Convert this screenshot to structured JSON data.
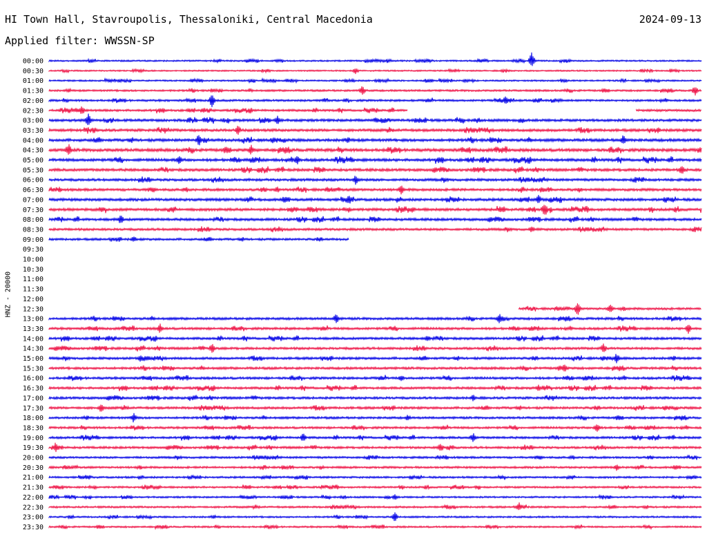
{
  "header": {
    "station": "HI Town Hall, Stavroupolis, Thessaloniki, Central Macedonia",
    "date": "2024-09-13",
    "filter_label": "Applied filter: WWSSN-SP"
  },
  "chart_data": {
    "type": "line",
    "title": "HI Town Hall, Stavroupolis, Thessaloniki, Central Macedonia",
    "subtitle": "Applied filter: WWSSN-SP",
    "ylabel": "HNZ - 20000",
    "xlabel": "",
    "colors": [
      "#0000e6",
      "#ee1144"
    ],
    "row_minutes": 30,
    "rows": [
      {
        "label": "00:00",
        "start": 0.0,
        "end": 1.0,
        "activity": 0.25,
        "events": [
          [
            0.74,
            5
          ]
        ]
      },
      {
        "label": "00:30",
        "start": 0.0,
        "end": 1.0,
        "activity": 0.2,
        "events": [
          [
            0.47,
            2
          ]
        ]
      },
      {
        "label": "01:00",
        "start": 0.0,
        "end": 1.0,
        "activity": 0.25,
        "events": []
      },
      {
        "label": "01:30",
        "start": 0.0,
        "end": 1.0,
        "activity": 0.35,
        "events": [
          [
            0.48,
            3
          ],
          [
            0.99,
            3
          ]
        ]
      },
      {
        "label": "02:00",
        "start": 0.0,
        "end": 1.0,
        "activity": 0.4,
        "events": [
          [
            0.25,
            4
          ],
          [
            0.7,
            3
          ]
        ]
      },
      {
        "label": "02:30",
        "start": 0.0,
        "end": 0.55,
        "activity": 0.45,
        "events": [
          [
            0.05,
            3
          ]
        ]
      },
      {
        "label": "02:30b",
        "start": 0.9,
        "end": 1.0,
        "activity": 0.45,
        "events": [],
        "row_index": 5
      },
      {
        "label": "03:00",
        "start": 0.0,
        "end": 1.0,
        "activity": 0.55,
        "events": [
          [
            0.06,
            4
          ],
          [
            0.35,
            3
          ]
        ]
      },
      {
        "label": "03:30",
        "start": 0.0,
        "end": 1.0,
        "activity": 0.6,
        "events": [
          [
            0.29,
            3
          ]
        ]
      },
      {
        "label": "04:00",
        "start": 0.0,
        "end": 1.0,
        "activity": 0.65,
        "events": [
          [
            0.23,
            4
          ],
          [
            0.88,
            3
          ]
        ]
      },
      {
        "label": "04:30",
        "start": 0.0,
        "end": 1.0,
        "activity": 0.7,
        "events": [
          [
            0.03,
            4
          ],
          [
            0.31,
            3
          ]
        ]
      },
      {
        "label": "05:00",
        "start": 0.0,
        "end": 1.0,
        "activity": 0.65,
        "events": [
          [
            0.2,
            3
          ],
          [
            0.38,
            3
          ]
        ]
      },
      {
        "label": "05:30",
        "start": 0.0,
        "end": 1.0,
        "activity": 0.6,
        "events": [
          [
            0.97,
            3
          ]
        ]
      },
      {
        "label": "06:00",
        "start": 0.0,
        "end": 1.0,
        "activity": 0.55,
        "events": [
          [
            0.47,
            3
          ]
        ]
      },
      {
        "label": "06:30",
        "start": 0.0,
        "end": 1.0,
        "activity": 0.55,
        "events": [
          [
            0.35,
            2
          ],
          [
            0.54,
            3
          ]
        ]
      },
      {
        "label": "07:00",
        "start": 0.0,
        "end": 1.0,
        "activity": 0.6,
        "events": [
          [
            0.46,
            3
          ],
          [
            0.75,
            3
          ]
        ]
      },
      {
        "label": "07:30",
        "start": 0.0,
        "end": 1.0,
        "activity": 0.6,
        "events": [
          [
            0.76,
            4
          ]
        ]
      },
      {
        "label": "08:00",
        "start": 0.0,
        "end": 1.0,
        "activity": 0.55,
        "events": [
          [
            0.11,
            3
          ]
        ]
      },
      {
        "label": "08:30",
        "start": 0.0,
        "end": 1.0,
        "activity": 0.5,
        "events": [
          [
            0.74,
            2
          ]
        ]
      },
      {
        "label": "09:00",
        "start": 0.0,
        "end": 0.46,
        "activity": 0.45,
        "events": [
          [
            0.13,
            2
          ]
        ]
      },
      {
        "label": "09:30",
        "start": 0.0,
        "end": 0.0,
        "activity": 0,
        "events": []
      },
      {
        "label": "10:00",
        "start": 0.0,
        "end": 0.0,
        "activity": 0,
        "events": []
      },
      {
        "label": "10:30",
        "start": 0.0,
        "end": 0.0,
        "activity": 0,
        "events": []
      },
      {
        "label": "11:00",
        "start": 0.0,
        "end": 0.0,
        "activity": 0,
        "events": []
      },
      {
        "label": "11:30",
        "start": 0.0,
        "end": 0.0,
        "activity": 0,
        "events": []
      },
      {
        "label": "12:00",
        "start": 0.0,
        "end": 0.0,
        "activity": 0,
        "events": []
      },
      {
        "label": "12:30",
        "start": 0.72,
        "end": 1.0,
        "activity": 0.45,
        "events": [
          [
            0.81,
            4
          ],
          [
            0.86,
            3
          ]
        ]
      },
      {
        "label": "13:00",
        "start": 0.0,
        "end": 1.0,
        "activity": 0.5,
        "events": [
          [
            0.44,
            3
          ],
          [
            0.69,
            3
          ]
        ]
      },
      {
        "label": "13:30",
        "start": 0.0,
        "end": 1.0,
        "activity": 0.5,
        "events": [
          [
            0.17,
            3
          ],
          [
            0.98,
            3
          ]
        ]
      },
      {
        "label": "14:00",
        "start": 0.0,
        "end": 1.0,
        "activity": 0.5,
        "events": [
          [
            0.58,
            2
          ]
        ]
      },
      {
        "label": "14:30",
        "start": 0.0,
        "end": 1.0,
        "activity": 0.5,
        "events": [
          [
            0.25,
            3
          ],
          [
            0.85,
            3
          ]
        ]
      },
      {
        "label": "15:00",
        "start": 0.0,
        "end": 1.0,
        "activity": 0.5,
        "events": [
          [
            0.14,
            2
          ],
          [
            0.87,
            3
          ]
        ]
      },
      {
        "label": "15:30",
        "start": 0.0,
        "end": 1.0,
        "activity": 0.5,
        "events": [
          [
            0.79,
            3
          ]
        ]
      },
      {
        "label": "16:00",
        "start": 0.0,
        "end": 1.0,
        "activity": 0.5,
        "events": [
          [
            0.54,
            2
          ]
        ]
      },
      {
        "label": "16:30",
        "start": 0.0,
        "end": 1.0,
        "activity": 0.5,
        "events": [
          [
            0.75,
            2
          ]
        ]
      },
      {
        "label": "17:00",
        "start": 0.0,
        "end": 1.0,
        "activity": 0.5,
        "events": [
          [
            0.65,
            2
          ]
        ]
      },
      {
        "label": "17:30",
        "start": 0.0,
        "end": 1.0,
        "activity": 0.5,
        "events": [
          [
            0.08,
            3
          ]
        ]
      },
      {
        "label": "18:00",
        "start": 0.0,
        "end": 1.0,
        "activity": 0.45,
        "events": [
          [
            0.13,
            3
          ],
          [
            0.55,
            2
          ]
        ]
      },
      {
        "label": "18:30",
        "start": 0.0,
        "end": 1.0,
        "activity": 0.45,
        "events": [
          [
            0.84,
            3
          ]
        ]
      },
      {
        "label": "19:00",
        "start": 0.0,
        "end": 1.0,
        "activity": 0.45,
        "events": [
          [
            0.39,
            3
          ],
          [
            0.65,
            3
          ]
        ]
      },
      {
        "label": "19:30",
        "start": 0.0,
        "end": 1.0,
        "activity": 0.45,
        "events": [
          [
            0.01,
            3
          ],
          [
            0.6,
            3
          ]
        ]
      },
      {
        "label": "20:00",
        "start": 0.0,
        "end": 1.0,
        "activity": 0.4,
        "events": []
      },
      {
        "label": "20:30",
        "start": 0.0,
        "end": 1.0,
        "activity": 0.4,
        "events": [
          [
            0.87,
            2
          ]
        ]
      },
      {
        "label": "21:00",
        "start": 0.0,
        "end": 1.0,
        "activity": 0.35,
        "events": []
      },
      {
        "label": "21:30",
        "start": 0.0,
        "end": 1.0,
        "activity": 0.35,
        "events": []
      },
      {
        "label": "22:00",
        "start": 0.0,
        "end": 1.0,
        "activity": 0.3,
        "events": [
          [
            0.53,
            2
          ]
        ]
      },
      {
        "label": "22:30",
        "start": 0.0,
        "end": 1.0,
        "activity": 0.35,
        "events": [
          [
            0.72,
            3
          ]
        ]
      },
      {
        "label": "23:00",
        "start": 0.0,
        "end": 1.0,
        "activity": 0.3,
        "events": [
          [
            0.53,
            3
          ]
        ]
      },
      {
        "label": "23:30",
        "start": 0.0,
        "end": 1.0,
        "activity": 0.3,
        "events": []
      }
    ]
  }
}
